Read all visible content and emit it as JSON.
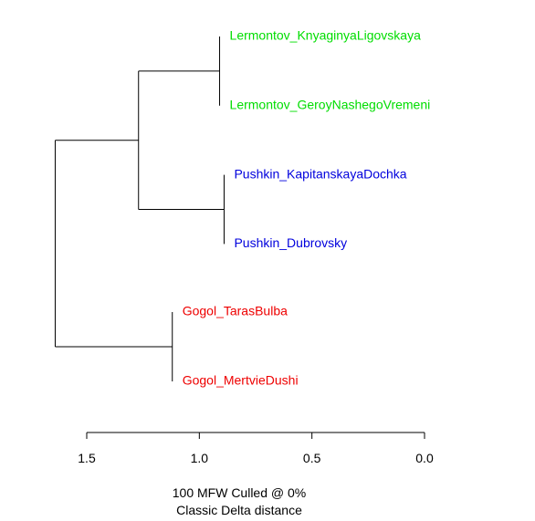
{
  "colors": {
    "line": "#000000",
    "lermontov": "#00dd00",
    "pushkin": "#0000dd",
    "gogol": "#ee0000"
  },
  "tree": {
    "leaves": [
      {
        "label": "Lermontov_KnyaginyaLigovskaya",
        "group": "lermontov"
      },
      {
        "label": "Lermontov_GeroyNashegoVremeni",
        "group": "lermontov"
      },
      {
        "label": "Pushkin_KapitanskayaDochka",
        "group": "pushkin"
      },
      {
        "label": "Pushkin_Dubrovsky",
        "group": "pushkin"
      },
      {
        "label": "Gogol_TarasBulba",
        "group": "gogol"
      },
      {
        "label": "Gogol_MertvieDushi",
        "group": "gogol"
      }
    ],
    "merges": [
      {
        "children": [
          0,
          1
        ],
        "height": 0.91
      },
      {
        "children": [
          2,
          3
        ],
        "height": 0.89
      },
      {
        "children": [
          4,
          5
        ],
        "height": 1.12
      },
      {
        "children": [
          "m0",
          "m1"
        ],
        "height": 1.27
      },
      {
        "children": [
          "m3",
          "m2"
        ],
        "height": 1.64
      }
    ]
  },
  "axis": {
    "range": [
      1.5,
      0.0
    ],
    "ticks": [
      1.5,
      1.0,
      0.5,
      0.0
    ],
    "tick_labels": [
      "1.5",
      "1.0",
      "0.5",
      "0.0"
    ]
  },
  "caption": {
    "line1": "100 MFW  Culled @ 0%",
    "line2": "Classic Delta distance"
  }
}
